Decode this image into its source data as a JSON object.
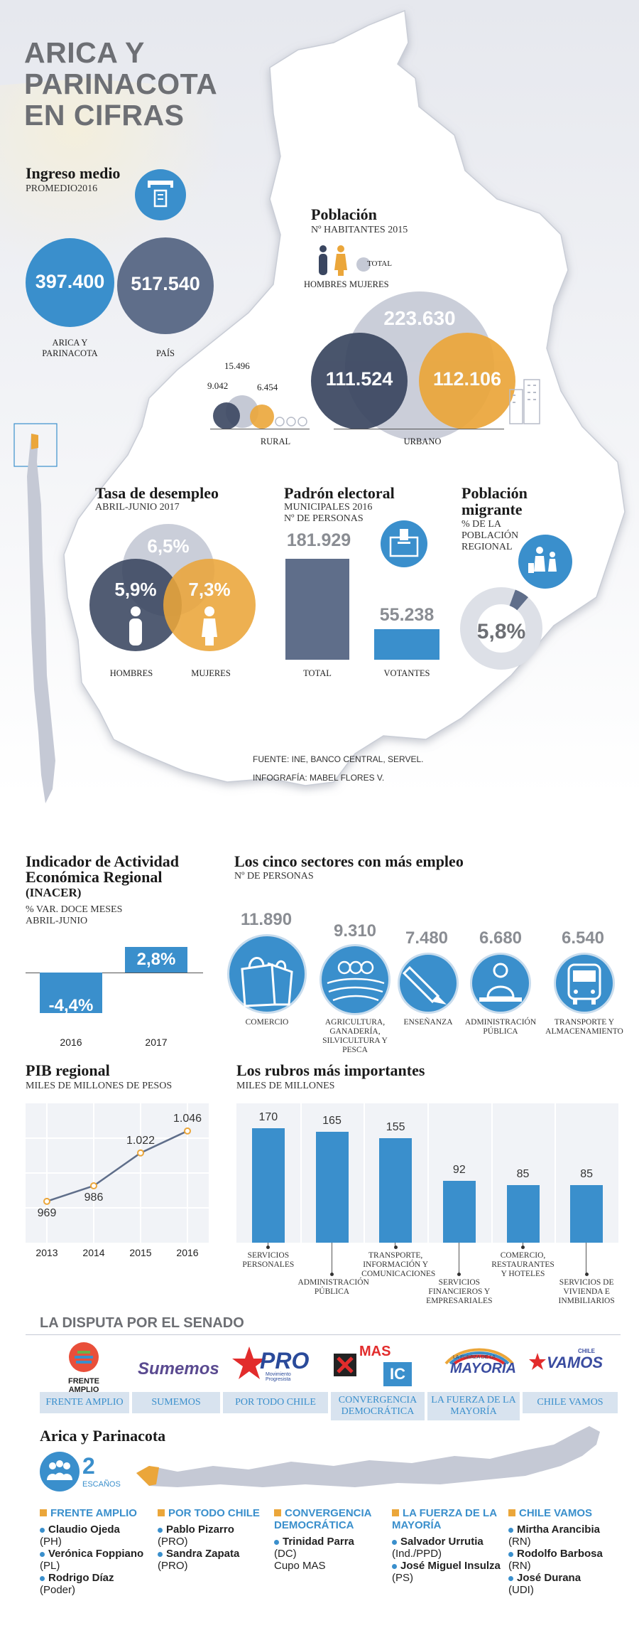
{
  "title": {
    "line1": "ARICA Y PARINACOTA",
    "line2": "EN CIFRAS"
  },
  "income": {
    "heading": "Ingreso medio",
    "subtitle": "PROMEDIO2016",
    "region_value": "397.400",
    "region_label": "ARICA Y PARINACOTA",
    "country_value": "517.540",
    "country_label": "PAÍS"
  },
  "population": {
    "heading": "Población",
    "subtitle": "Nº HABITANTES 2015",
    "legend_men": "HOMBRES",
    "legend_women": "MUJERES",
    "legend_total": "TOTAL",
    "rural_total": "15.496",
    "rural_men": "9.042",
    "rural_women": "6.454",
    "rural_label": "RURAL",
    "urban_total": "223.630",
    "urban_men": "111.524",
    "urban_women": "112.106",
    "urban_label": "URBANO"
  },
  "unemployment": {
    "heading": "Tasa de desempleo",
    "subtitle": "ABRIL-JUNIO 2017",
    "total": "6,5%",
    "men": "5,9%",
    "women": "7,3%",
    "men_label": "HOMBRES",
    "women_label": "MUJERES"
  },
  "electoral": {
    "heading": "Padrón electoral",
    "subtitle1": "MUNICIPALES 2016",
    "subtitle2": "Nº DE PERSONAS",
    "total_value": "181.929",
    "total_label": "TOTAL",
    "voters_value": "55.238",
    "voters_label": "VOTANTES",
    "chart_data": {
      "type": "bar",
      "categories": [
        "TOTAL",
        "VOTANTES"
      ],
      "values": [
        181929,
        55238
      ]
    }
  },
  "migrant": {
    "heading1": "Población",
    "heading2": "migrante",
    "subtitle": "% DE LA POBLACIÓN REGIONAL",
    "value": "5,8%",
    "fraction": 0.058
  },
  "source": {
    "line1": "FUENTE: INE, BANCO CENTRAL, SERVEL.",
    "line2": "INFOGRAFÍA: MABEL FLORES V."
  },
  "inacer": {
    "heading1": "Indicador de Actividad",
    "heading2": "Económica Regional",
    "heading3": "(INACER)",
    "subtitle1": "% VAR. DOCE MESES",
    "subtitle2": "ABRIL-JUNIO",
    "chart_data": {
      "type": "bar",
      "categories": [
        "2016",
        "2017"
      ],
      "values": [
        -4.4,
        2.8
      ],
      "value_labels": [
        "-4,4%",
        "2,8%"
      ]
    }
  },
  "sectors": {
    "heading": "Los cinco sectores con más empleo",
    "subtitle": "Nº DE PERSONAS",
    "items": [
      {
        "value": "11.890",
        "label": "COMERCIO"
      },
      {
        "value": "9.310",
        "label": "AGRICULTURA, GANADERÍA, SILVICULTURA Y PESCA"
      },
      {
        "value": "7.480",
        "label": "ENSEÑANZA"
      },
      {
        "value": "6.680",
        "label": "ADMINISTRACIÓN PÚBLICA"
      },
      {
        "value": "6.540",
        "label": "TRANSPORTE Y ALMACENAMIENTO"
      }
    ]
  },
  "pib": {
    "heading": "PIB regional",
    "subtitle": "MILES DE MILLONES DE PESOS",
    "chart_data": {
      "type": "line",
      "x": [
        "2013",
        "2014",
        "2015",
        "2016"
      ],
      "values": [
        969,
        986,
        1022,
        1046
      ],
      "value_labels": [
        "969",
        "986",
        "1.022",
        "1.046"
      ],
      "ylim": [
        930,
        1070
      ]
    }
  },
  "rubros": {
    "heading": "Los rubros más importantes",
    "subtitle": "MILES DE MILLONES",
    "chart_data": {
      "type": "bar",
      "categories": [
        "SERVICIOS PERSONALES",
        "ADMINISTRACIÓN PÚBLICA",
        "TRANSPORTE, INFORMACIÓN Y COMUNICACIONES",
        "SERVICIOS FINANCIEROS Y EMPRESARIALES",
        "COMERCIO, RESTAURANTES Y HOTELES",
        "SERVICIOS DE VIVIENDA E INMBILIARIOS"
      ],
      "values": [
        170,
        165,
        155,
        92,
        85,
        85
      ],
      "ylim": [
        0,
        190
      ]
    }
  },
  "senate": {
    "heading": "LA DISPUTA POR EL SENADO",
    "logos": {
      "frente_amplio": "FRENTE AMPLIO",
      "sumemos": "Sumemos",
      "pro": "PRO",
      "pro_sub": "Movimiento Progresista",
      "mas": "MAS",
      "ic": "IC",
      "mayoria": "MAYORIA",
      "mayoria_top": "LA FUERZA DE LA",
      "chile": "CHILE",
      "vamos": "VAMOS"
    },
    "tabs": [
      "FRENTE AMPLIO",
      "SUMEMOS",
      "POR TODO CHILE",
      "CONVERGENCIA DEMOCRÁTICA",
      "LA FUERZA DE LA MAYORÍA",
      "CHILE VAMOS"
    ],
    "region_heading": "Arica y Parinacota",
    "seats_value": "2",
    "seats_label": "ESCAÑOS",
    "lists": [
      {
        "name": "FRENTE AMPLIO",
        "candidates": [
          {
            "name": "Claudio Ojeda",
            "party": "(PH)"
          },
          {
            "name": "Verónica Foppiano",
            "party": "(PL)"
          },
          {
            "name": "Rodrigo Díaz",
            "party": "(Poder)"
          }
        ]
      },
      {
        "name": "POR TODO CHILE",
        "candidates": [
          {
            "name": "Pablo Pizarro",
            "party": "(PRO)"
          },
          {
            "name": "Sandra Zapata",
            "party": "(PRO)"
          }
        ]
      },
      {
        "name": "CONVERGENCIA DEMOCRÁTICA",
        "candidates": [
          {
            "name": "Trinidad Parra",
            "party": "(DC)",
            "note": "Cupo MAS"
          }
        ]
      },
      {
        "name": "LA FUERZA DE LA MAYORÍA",
        "candidates": [
          {
            "name": "Salvador Urrutia",
            "party": "(Ind./PPD)"
          },
          {
            "name": "José Miguel Insulza",
            "party": "(PS)"
          }
        ]
      },
      {
        "name": "CHILE VAMOS",
        "candidates": [
          {
            "name": "Mirtha Arancibia",
            "party": "(RN)"
          },
          {
            "name": "Rodolfo Barbosa",
            "party": "(RN)"
          },
          {
            "name": "José Durana",
            "party": "(UDI)"
          }
        ]
      }
    ]
  },
  "colors": {
    "blue": "#3a8fcc",
    "slate": "#5f6e8a",
    "navy": "#3a4660",
    "orange": "#eba63a",
    "map": "#ffffff",
    "map_edge": "#c9cdd6",
    "cream": "#f4efdc"
  }
}
